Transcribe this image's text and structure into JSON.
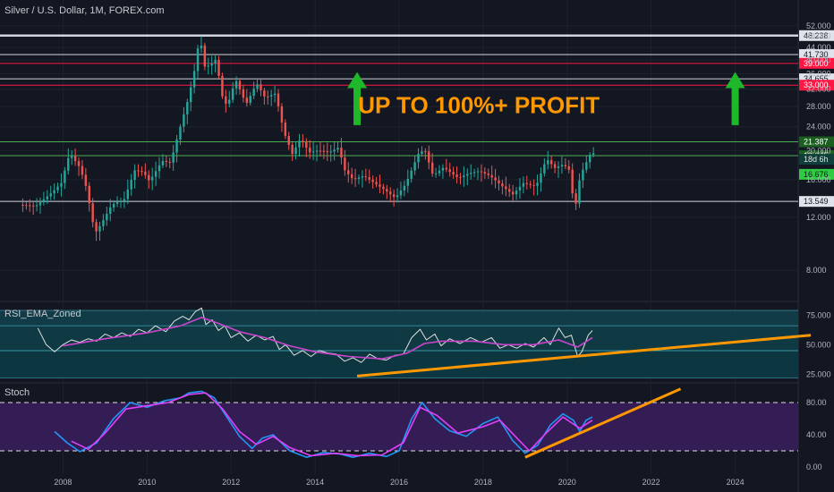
{
  "chart_title": "Silver / U.S. Dollar, 1M, FOREX.com",
  "headline": "UP TO 100%+ PROFIT",
  "colors": {
    "background": "#131722",
    "grid": "#1e222d",
    "up": "#26a69a",
    "down": "#ef5350",
    "resistance": "#ff1744",
    "support": "#4caf50",
    "level": "#d1d4dc",
    "trendline": "#ff9800",
    "arrow": "#1fb82a",
    "headline": "#ff9800",
    "rsi": "#e0e0e0",
    "ema": "#cc44cc",
    "stoch_k": "#2196f3",
    "stoch_d": "#e040fb"
  },
  "chart_data": [
    {
      "id": "price",
      "type": "candlestick",
      "title": "Silver / U.S. Dollar, 1M, FOREX.com",
      "scale": "log",
      "x_range": [
        2006.5,
        2025.5
      ],
      "y_range": [
        6.7,
        56
      ],
      "x_ticks": [
        "2008",
        "2010",
        "2012",
        "2014",
        "2016",
        "2018",
        "2020",
        "2022",
        "2024"
      ],
      "y_ticks": [
        "8.000",
        "12.000",
        "16.000",
        "20.000",
        "24.000",
        "28.000",
        "32.000",
        "36.000",
        "40.000",
        "44.000",
        "48.000",
        "52.000"
      ],
      "path": [
        [
          2007.0,
          13.2
        ],
        [
          2007.4,
          13.1
        ],
        [
          2007.8,
          14.6
        ],
        [
          2008.0,
          15.6
        ],
        [
          2008.2,
          19.6
        ],
        [
          2008.45,
          17.5
        ],
        [
          2008.6,
          15.0
        ],
        [
          2008.8,
          10.6
        ],
        [
          2008.95,
          11.4
        ],
        [
          2009.2,
          13.2
        ],
        [
          2009.5,
          13.8
        ],
        [
          2009.75,
          17.2
        ],
        [
          2009.95,
          17.0
        ],
        [
          2010.1,
          15.8
        ],
        [
          2010.4,
          18.5
        ],
        [
          2010.6,
          18.2
        ],
        [
          2010.85,
          24.5
        ],
        [
          2011.0,
          29.0
        ],
        [
          2011.15,
          35.5
        ],
        [
          2011.3,
          48.5
        ],
        [
          2011.4,
          38.0
        ],
        [
          2011.55,
          38.5
        ],
        [
          2011.7,
          40.5
        ],
        [
          2011.8,
          31.0
        ],
        [
          2011.95,
          28.0
        ],
        [
          2012.15,
          34.5
        ],
        [
          2012.4,
          28.5
        ],
        [
          2012.65,
          33.5
        ],
        [
          2012.85,
          30.0
        ],
        [
          2013.1,
          31.0
        ],
        [
          2013.3,
          23.0
        ],
        [
          2013.5,
          19.5
        ],
        [
          2013.7,
          22.0
        ],
        [
          2013.9,
          19.7
        ],
        [
          2014.1,
          20.0
        ],
        [
          2014.4,
          19.8
        ],
        [
          2014.6,
          20.5
        ],
        [
          2014.75,
          17.2
        ],
        [
          2014.95,
          16.0
        ],
        [
          2015.2,
          16.5
        ],
        [
          2015.45,
          15.6
        ],
        [
          2015.7,
          14.8
        ],
        [
          2015.95,
          13.9
        ],
        [
          2016.2,
          15.5
        ],
        [
          2016.5,
          19.5
        ],
        [
          2016.65,
          20.2
        ],
        [
          2016.85,
          16.5
        ],
        [
          2017.1,
          17.6
        ],
        [
          2017.45,
          16.2
        ],
        [
          2017.7,
          16.8
        ],
        [
          2017.95,
          17.1
        ],
        [
          2018.2,
          16.5
        ],
        [
          2018.5,
          15.2
        ],
        [
          2018.75,
          14.3
        ],
        [
          2019.0,
          15.6
        ],
        [
          2019.3,
          15.2
        ],
        [
          2019.55,
          18.8
        ],
        [
          2019.75,
          17.5
        ],
        [
          2019.95,
          18.0
        ],
        [
          2020.1,
          17.2
        ],
        [
          2020.22,
          12.5
        ],
        [
          2020.35,
          16.5
        ],
        [
          2020.5,
          18.3
        ],
        [
          2020.6,
          19.6
        ]
      ],
      "levels": [
        {
          "value": 48.238,
          "label": "48.238",
          "kind": "level"
        },
        {
          "value": 41.73,
          "label": "41.730",
          "kind": "level"
        },
        {
          "value": 39.0,
          "label": "39.000",
          "kind": "resistance"
        },
        {
          "value": 34.655,
          "label": "34.655",
          "kind": "level"
        },
        {
          "value": 33.0,
          "label": "33.000",
          "kind": "resistance"
        },
        {
          "value": 21.387,
          "label": "21.387",
          "kind": "support"
        },
        {
          "value": 19.245,
          "label": "19.245",
          "kind": "support"
        },
        {
          "value": 13.549,
          "label": "13.549",
          "kind": "level"
        }
      ],
      "price_tags": [
        {
          "value": 18.7,
          "label": "18d 6h",
          "kind": "countdown"
        },
        {
          "value": 16.676,
          "label": "16.676",
          "kind": "support-tag"
        }
      ],
      "arrows": [
        {
          "x": 2015.0,
          "from": 24.3,
          "to": 36.5
        },
        {
          "x": 2024.0,
          "from": 24.3,
          "to": 36.5
        }
      ]
    },
    {
      "id": "rsi",
      "type": "line",
      "title": "RSI_EMA_Zoned",
      "y_range": [
        20,
        82
      ],
      "y_ticks": [
        "25.000",
        "50.000",
        "75.000"
      ],
      "zones": [
        [
          22,
          45
        ],
        [
          45,
          66
        ],
        [
          66,
          79
        ]
      ],
      "series": [
        {
          "role": "rsi",
          "points": [
            [
              2007.4,
              64
            ],
            [
              2007.6,
              50
            ],
            [
              2007.8,
              44
            ],
            [
              2008.0,
              50
            ],
            [
              2008.2,
              54
            ],
            [
              2008.4,
              52
            ],
            [
              2008.6,
              55
            ],
            [
              2008.8,
              53
            ],
            [
              2009.0,
              59
            ],
            [
              2009.2,
              56
            ],
            [
              2009.4,
              60
            ],
            [
              2009.6,
              57
            ],
            [
              2009.8,
              63
            ],
            [
              2010.0,
              60
            ],
            [
              2010.2,
              66
            ],
            [
              2010.45,
              61
            ],
            [
              2010.65,
              70
            ],
            [
              2010.85,
              74
            ],
            [
              2011.0,
              71
            ],
            [
              2011.15,
              78
            ],
            [
              2011.3,
              81
            ],
            [
              2011.4,
              67
            ],
            [
              2011.55,
              71
            ],
            [
              2011.7,
              62
            ],
            [
              2011.85,
              66
            ],
            [
              2012.0,
              56
            ],
            [
              2012.2,
              60
            ],
            [
              2012.4,
              53
            ],
            [
              2012.6,
              58
            ],
            [
              2012.8,
              54
            ],
            [
              2013.0,
              57
            ],
            [
              2013.15,
              46
            ],
            [
              2013.3,
              50
            ],
            [
              2013.5,
              41
            ],
            [
              2013.7,
              45
            ],
            [
              2013.9,
              40
            ],
            [
              2014.1,
              45
            ],
            [
              2014.3,
              43
            ],
            [
              2014.5,
              42
            ],
            [
              2014.7,
              36
            ],
            [
              2014.9,
              39
            ],
            [
              2015.1,
              35
            ],
            [
              2015.3,
              42
            ],
            [
              2015.5,
              38
            ],
            [
              2015.7,
              37
            ],
            [
              2015.9,
              41
            ],
            [
              2016.1,
              42
            ],
            [
              2016.3,
              56
            ],
            [
              2016.5,
              63
            ],
            [
              2016.65,
              54
            ],
            [
              2016.85,
              59
            ],
            [
              2017.0,
              49
            ],
            [
              2017.2,
              55
            ],
            [
              2017.45,
              51
            ],
            [
              2017.7,
              56
            ],
            [
              2017.95,
              52
            ],
            [
              2018.2,
              56
            ],
            [
              2018.4,
              47
            ],
            [
              2018.6,
              50
            ],
            [
              2018.8,
              47
            ],
            [
              2019.0,
              51
            ],
            [
              2019.2,
              48
            ],
            [
              2019.45,
              56
            ],
            [
              2019.6,
              50
            ],
            [
              2019.8,
              64
            ],
            [
              2019.95,
              56
            ],
            [
              2020.1,
              58
            ],
            [
              2020.25,
              40
            ],
            [
              2020.35,
              44
            ],
            [
              2020.5,
              58
            ],
            [
              2020.6,
              62
            ]
          ]
        },
        {
          "role": "ema",
          "points": [
            [
              2008.0,
              49
            ],
            [
              2009.0,
              55
            ],
            [
              2010.0,
              60
            ],
            [
              2010.8,
              66
            ],
            [
              2011.3,
              73
            ],
            [
              2011.7,
              68
            ],
            [
              2012.2,
              61
            ],
            [
              2012.8,
              56
            ],
            [
              2013.4,
              49
            ],
            [
              2014.0,
              44
            ],
            [
              2014.8,
              40
            ],
            [
              2015.6,
              38
            ],
            [
              2016.2,
              43
            ],
            [
              2016.6,
              51
            ],
            [
              2017.0,
              53
            ],
            [
              2017.8,
              53
            ],
            [
              2018.5,
              50
            ],
            [
              2019.2,
              50
            ],
            [
              2019.8,
              54
            ],
            [
              2020.25,
              48
            ],
            [
              2020.6,
              56
            ]
          ]
        }
      ],
      "trendline": [
        [
          2015.0,
          23.5
        ],
        [
          2025.8,
          58.0
        ]
      ]
    },
    {
      "id": "stoch",
      "type": "line",
      "title": "Stoch",
      "y_range": [
        0,
        100
      ],
      "y_ticks": [
        "0.00",
        "40.00",
        "80.00"
      ],
      "band": [
        20,
        80
      ],
      "series": [
        {
          "role": "k",
          "points": [
            [
              2007.8,
              44
            ],
            [
              2008.1,
              30
            ],
            [
              2008.4,
              19
            ],
            [
              2008.8,
              30
            ],
            [
              2009.2,
              60
            ],
            [
              2009.6,
              80
            ],
            [
              2010.0,
              74
            ],
            [
              2010.4,
              82
            ],
            [
              2010.8,
              86
            ],
            [
              2011.0,
              92
            ],
            [
              2011.3,
              94
            ],
            [
              2011.6,
              86
            ],
            [
              2011.9,
              62
            ],
            [
              2012.2,
              38
            ],
            [
              2012.5,
              23
            ],
            [
              2012.75,
              36
            ],
            [
              2013.0,
              40
            ],
            [
              2013.4,
              20
            ],
            [
              2013.8,
              12
            ],
            [
              2014.2,
              18
            ],
            [
              2014.6,
              16
            ],
            [
              2014.9,
              12
            ],
            [
              2015.3,
              17
            ],
            [
              2015.7,
              13
            ],
            [
              2016.0,
              20
            ],
            [
              2016.3,
              60
            ],
            [
              2016.55,
              80
            ],
            [
              2016.85,
              60
            ],
            [
              2017.2,
              45
            ],
            [
              2017.6,
              38
            ],
            [
              2018.0,
              54
            ],
            [
              2018.35,
              62
            ],
            [
              2018.7,
              33
            ],
            [
              2019.0,
              17
            ],
            [
              2019.3,
              27
            ],
            [
              2019.6,
              52
            ],
            [
              2019.9,
              66
            ],
            [
              2020.15,
              58
            ],
            [
              2020.3,
              44
            ],
            [
              2020.45,
              58
            ],
            [
              2020.6,
              62
            ]
          ]
        },
        {
          "role": "d",
          "points": [
            [
              2008.2,
              32
            ],
            [
              2008.6,
              22
            ],
            [
              2009.0,
              42
            ],
            [
              2009.5,
              72
            ],
            [
              2010.0,
              76
            ],
            [
              2010.5,
              80
            ],
            [
              2011.0,
              90
            ],
            [
              2011.4,
              92
            ],
            [
              2011.8,
              72
            ],
            [
              2012.2,
              44
            ],
            [
              2012.6,
              28
            ],
            [
              2013.0,
              38
            ],
            [
              2013.4,
              24
            ],
            [
              2013.9,
              14
            ],
            [
              2014.5,
              17
            ],
            [
              2015.0,
              14
            ],
            [
              2015.6,
              15
            ],
            [
              2016.1,
              30
            ],
            [
              2016.5,
              74
            ],
            [
              2016.9,
              64
            ],
            [
              2017.4,
              42
            ],
            [
              2018.0,
              50
            ],
            [
              2018.4,
              58
            ],
            [
              2018.8,
              36
            ],
            [
              2019.1,
              20
            ],
            [
              2019.5,
              42
            ],
            [
              2019.9,
              62
            ],
            [
              2020.3,
              48
            ],
            [
              2020.6,
              58
            ]
          ]
        }
      ],
      "trendline": [
        [
          2019.0,
          12
        ],
        [
          2022.7,
          97
        ]
      ]
    }
  ]
}
